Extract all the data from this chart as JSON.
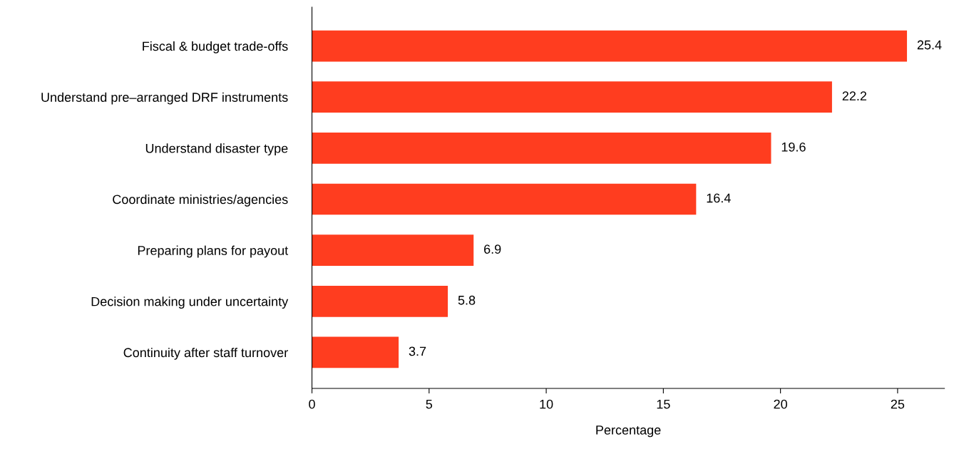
{
  "chart_data": {
    "type": "bar",
    "orientation": "horizontal",
    "xlabel": "Percentage",
    "categories": [
      "Fiscal & budget trade-offs",
      "Understand pre–arranged DRF instruments",
      "Understand disaster type",
      "Coordinate ministries/agencies",
      "Preparing plans for payout",
      "Decision making under uncertainty",
      "Continuity after staff turnover"
    ],
    "values": [
      25.4,
      22.2,
      19.6,
      16.4,
      6.9,
      5.8,
      3.7
    ],
    "color": "#ff3d1f",
    "xlim": [
      0,
      27
    ],
    "xticks": [
      0,
      5,
      10,
      15,
      20,
      25
    ],
    "data_labels": true,
    "grid": false
  }
}
